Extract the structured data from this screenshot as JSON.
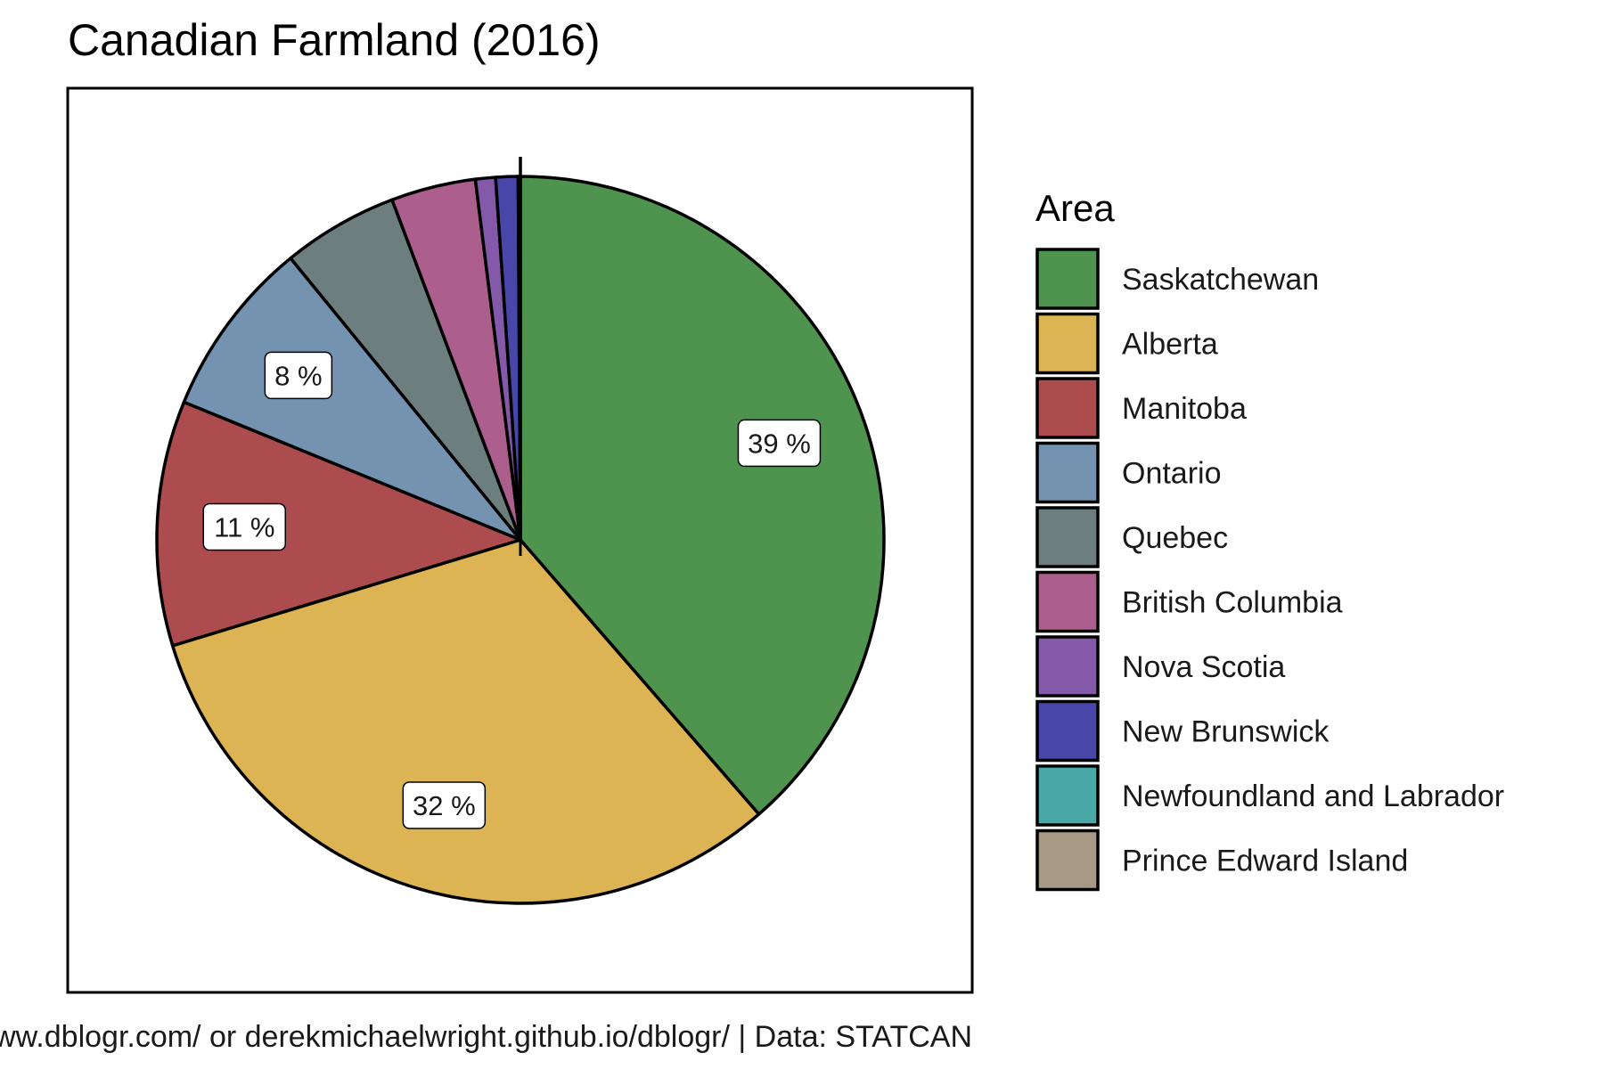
{
  "chart_data": {
    "type": "pie",
    "title": "Canadian Farmland (2016)",
    "caption": "www.dblogr.com/ or derekmichaelwright.github.io/dblogr/ | Data: STATCAN",
    "legend_title": "Area",
    "legend_position": "right",
    "slices": [
      {
        "name": "Saskatchewan",
        "percent": 39.0,
        "label": "39 %",
        "color": "#4E944F"
      },
      {
        "name": "Alberta",
        "percent": 32.0,
        "label": "32 %",
        "color": "#DCB453"
      },
      {
        "name": "Manitoba",
        "percent": 11.0,
        "label": "11 %",
        "color": "#AD4C4E"
      },
      {
        "name": "Ontario",
        "percent": 8.0,
        "label": "8 %",
        "color": "#7493B0"
      },
      {
        "name": "Quebec",
        "percent": 5.2,
        "label": "",
        "color": "#6C7F7E"
      },
      {
        "name": "British Columbia",
        "percent": 3.8,
        "label": "",
        "color": "#AC5F8C"
      },
      {
        "name": "Nova Scotia",
        "percent": 0.9,
        "label": "",
        "color": "#8559A9"
      },
      {
        "name": "New Brunswick",
        "percent": 1.0,
        "label": "",
        "color": "#4946A9"
      },
      {
        "name": "Newfoundland and Labrador",
        "percent": 0.05,
        "label": "",
        "color": "#4AA9A6"
      },
      {
        "name": "Prince Edward Island",
        "percent": 0.05,
        "label": "",
        "color": "#A89886"
      }
    ]
  }
}
